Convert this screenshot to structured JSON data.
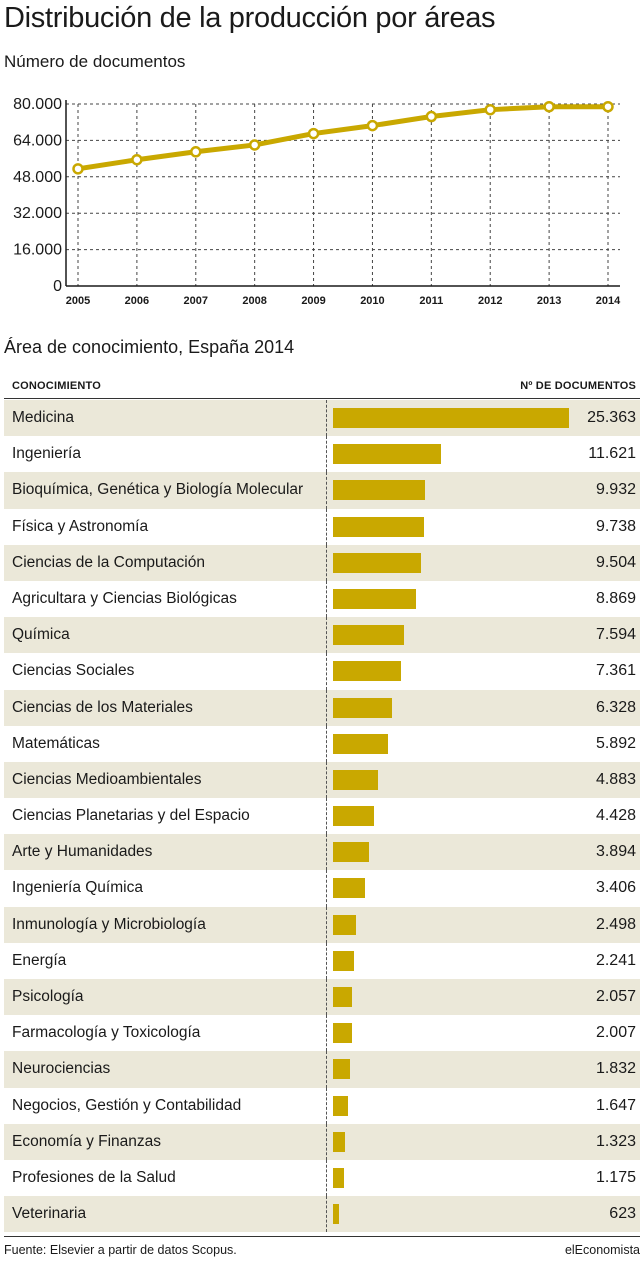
{
  "header": {
    "title": "Distribución de la producción por áreas",
    "subtitle": "Número de documentos"
  },
  "chart_data": [
    {
      "type": "line",
      "title": "Distribución de la producción por áreas",
      "subtitle": "Número de documentos",
      "x": [
        "2005",
        "2006",
        "2007",
        "2008",
        "2009",
        "2010",
        "2011",
        "2012",
        "2013",
        "2014"
      ],
      "values": [
        51500,
        55500,
        59000,
        62000,
        67000,
        70500,
        74500,
        77500,
        78800,
        78800
      ],
      "yticks": [
        "0",
        "16.000",
        "32.000",
        "48.000",
        "64.000",
        "80.000"
      ],
      "ylim": [
        0,
        80000
      ],
      "grid": true,
      "color": "#c9a800"
    },
    {
      "type": "bar",
      "orientation": "horizontal",
      "title": "Área de conocimiento, España 2014",
      "category_header": "CONOCIMIENTO",
      "value_header": "Nº DE DOCUMENTOS",
      "xlim": [
        0,
        25363
      ],
      "color": "#c9a800",
      "rows": [
        {
          "label": "Medicina",
          "value": 25363,
          "value_label": "25.363"
        },
        {
          "label": "Ingeniería",
          "value": 11621,
          "value_label": "11.621"
        },
        {
          "label": "Bioquímica, Genética y Biología Molecular",
          "value": 9932,
          "value_label": "9.932"
        },
        {
          "label": "Física y Astronomía",
          "value": 9738,
          "value_label": "9.738"
        },
        {
          "label": "Ciencias de la Computación",
          "value": 9504,
          "value_label": "9.504"
        },
        {
          "label": "Agricultara y Ciencias Biológicas",
          "value": 8869,
          "value_label": "8.869"
        },
        {
          "label": "Química",
          "value": 7594,
          "value_label": "7.594"
        },
        {
          "label": "Ciencias Sociales",
          "value": 7361,
          "value_label": "7.361"
        },
        {
          "label": "Ciencias de los Materiales",
          "value": 6328,
          "value_label": "6.328"
        },
        {
          "label": "Matemáticas",
          "value": 5892,
          "value_label": "5.892"
        },
        {
          "label": "Ciencias Medioambientales",
          "value": 4883,
          "value_label": "4.883"
        },
        {
          "label": "Ciencias Planetarias y del Espacio",
          "value": 4428,
          "value_label": "4.428"
        },
        {
          "label": "Arte y Humanidades",
          "value": 3894,
          "value_label": "3.894"
        },
        {
          "label": "Ingeniería Química",
          "value": 3406,
          "value_label": "3.406"
        },
        {
          "label": "Inmunología y Microbiología",
          "value": 2498,
          "value_label": "2.498"
        },
        {
          "label": "Energía",
          "value": 2241,
          "value_label": "2.241"
        },
        {
          "label": "Psicología",
          "value": 2057,
          "value_label": "2.057"
        },
        {
          "label": "Farmacología y Toxicología",
          "value": 2007,
          "value_label": "2.007"
        },
        {
          "label": "Neurociencias",
          "value": 1832,
          "value_label": "1.832"
        },
        {
          "label": "Negocios, Gestión y Contabilidad",
          "value": 1647,
          "value_label": "1.647"
        },
        {
          "label": "Economía y Finanzas",
          "value": 1323,
          "value_label": "1.323"
        },
        {
          "label": "Profesiones de la Salud",
          "value": 1175,
          "value_label": "1.175"
        },
        {
          "label": "Veterinaria",
          "value": 623,
          "value_label": "623"
        }
      ]
    }
  ],
  "footer": {
    "source": "Fuente: Elsevier a partir de datos Scopus.",
    "brand": "elEconomista"
  }
}
